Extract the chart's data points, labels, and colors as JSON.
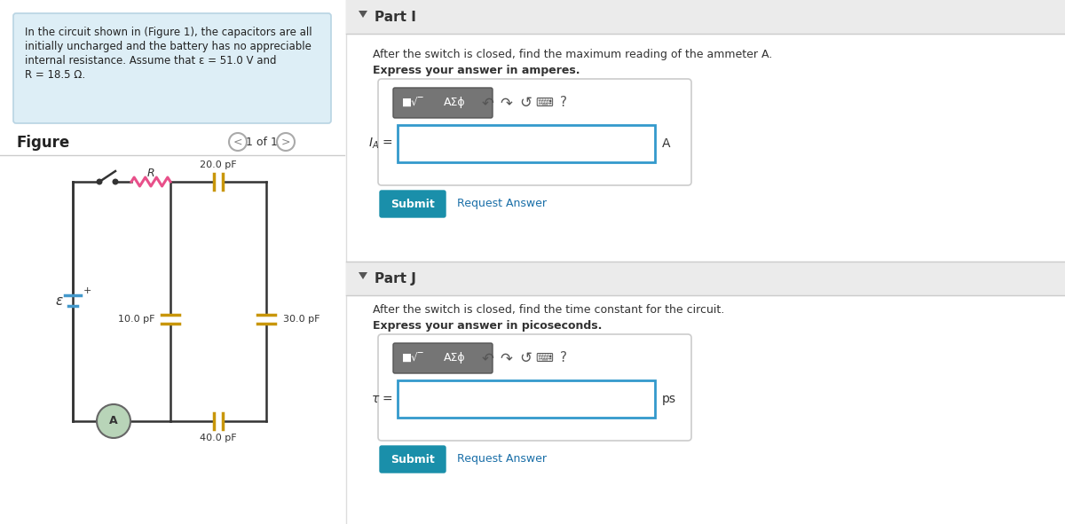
{
  "bg_color": "#f0f0f0",
  "left_panel_bg": "#ffffff",
  "info_box_bg": "#ddeef6",
  "info_box_border": "#b8d4e3",
  "info_text_line1": "In the circuit shown in (Figure 1), the capacitors are all",
  "info_text_line2": "initially uncharged and the battery has no appreciable",
  "info_text_line3": "internal resistance. Assume that ε = 51.0 V and",
  "info_text_line4": "R = 18.5 Ω.",
  "figure_label": "Figure",
  "nav_text": "1 of 1",
  "right_panel_bg": "#ffffff",
  "header_bg": "#ebebeb",
  "part_i_label": "Part I",
  "part_i_desc": "After the switch is closed, find the maximum reading of the ammeter A.",
  "part_i_bold": "Express your answer in amperes.",
  "part_j_label": "Part J",
  "part_j_desc": "After the switch is closed, find the time constant for the circuit.",
  "part_j_bold": "Express your answer in picoseconds.",
  "unit_a": "A",
  "unit_ps": "ps",
  "submit_color": "#1a8faa",
  "submit_text": "Submit",
  "request_text": "Request Answer",
  "request_color": "#1a6fa8",
  "input_border": "#3399cc",
  "toolbar_bg": "#757575",
  "resistor_color": "#e8508a",
  "capacitor_color": "#c8960a",
  "wire_color": "#333333",
  "battery_color": "#4499cc",
  "ammeter_fill": "#b8d4b8",
  "ammeter_edge": "#666666",
  "cap_20_label": "20.0 pF",
  "cap_10_label": "10.0 pF",
  "cap_30_label": "30.0 pF",
  "cap_40_label": "40.0 pF",
  "R_label": "R"
}
